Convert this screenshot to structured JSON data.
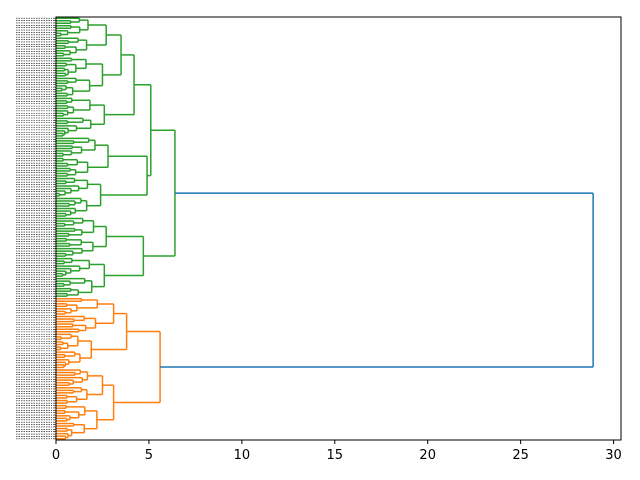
{
  "chart_data": {
    "type": "dendrogram",
    "orientation": "horizontal",
    "title": "",
    "xlabel": "",
    "ylabel": "",
    "xlim": [
      0,
      30.4
    ],
    "x_ticks": [
      0,
      5,
      10,
      15,
      20,
      25,
      30
    ],
    "x_tick_labels": [
      "0",
      "5",
      "10",
      "15",
      "20",
      "25",
      "30"
    ],
    "grid": false,
    "colors": {
      "orange_cluster": "#ff7f0e",
      "green_cluster": "#2ca02c",
      "root_link": "#1f77b4",
      "axis": "#000000"
    },
    "leaf_counts": {
      "orange_cluster": 60,
      "green_cluster": 118
    },
    "merges": [
      {
        "name": "root",
        "height": 28.9,
        "color": "root_link",
        "children": [
          "orange-top",
          "green-top"
        ]
      },
      {
        "name": "orange-top",
        "height": 5.6,
        "color": "orange_cluster",
        "children": [
          "orange-a",
          "orange-b"
        ]
      },
      {
        "name": "orange-a",
        "height": 3.8,
        "color": "orange_cluster",
        "children": [
          "orange-a1",
          "orange-a2"
        ]
      },
      {
        "name": "orange-a1",
        "height": 3.1,
        "color": "orange_cluster",
        "children": [
          "leaves",
          "leaves"
        ]
      },
      {
        "name": "orange-a2",
        "height": 1.9,
        "color": "orange_cluster",
        "children": [
          "leaves",
          "leaves"
        ]
      },
      {
        "name": "orange-b",
        "height": 3.1,
        "color": "orange_cluster",
        "children": [
          "orange-b1",
          "orange-b2"
        ]
      },
      {
        "name": "orange-b1",
        "height": 2.5,
        "color": "orange_cluster",
        "children": [
          "leaves",
          "leaves"
        ]
      },
      {
        "name": "orange-b2",
        "height": 2.2,
        "color": "orange_cluster",
        "children": [
          "leaves",
          "leaves"
        ]
      },
      {
        "name": "green-top",
        "height": 6.4,
        "color": "green_cluster",
        "children": [
          "green-a",
          "green-b"
        ]
      },
      {
        "name": "green-a",
        "height": 5.1,
        "color": "green_cluster",
        "children": [
          "green-a1",
          "green-a2"
        ]
      },
      {
        "name": "green-a1",
        "height": 4.2,
        "color": "green_cluster",
        "children": [
          "green-a1x",
          "green-a1y"
        ]
      },
      {
        "name": "green-a1x",
        "height": 3.5,
        "color": "green_cluster",
        "children": [
          "green-a1x1",
          "green-a1x2"
        ]
      },
      {
        "name": "green-a1x1",
        "height": 2.7,
        "color": "green_cluster",
        "children": [
          "leaves",
          "leaves"
        ]
      },
      {
        "name": "green-a1x2",
        "height": 2.5,
        "color": "green_cluster",
        "children": [
          "leaves",
          "leaves"
        ]
      },
      {
        "name": "green-a1y",
        "height": 2.6,
        "color": "green_cluster",
        "children": [
          "leaves",
          "leaves"
        ]
      },
      {
        "name": "green-a2",
        "height": 4.9,
        "color": "green_cluster",
        "children": [
          "green-a2x",
          "green-a2y"
        ]
      },
      {
        "name": "green-a2x",
        "height": 2.8,
        "color": "green_cluster",
        "children": [
          "leaves",
          "leaves"
        ]
      },
      {
        "name": "green-a2y",
        "height": 2.4,
        "color": "green_cluster",
        "children": [
          "leaves",
          "leaves"
        ]
      },
      {
        "name": "green-b",
        "height": 4.7,
        "color": "green_cluster",
        "children": [
          "green-b1",
          "green-b2"
        ]
      },
      {
        "name": "green-b1",
        "height": 2.7,
        "color": "green_cluster",
        "children": [
          "leaves",
          "leaves"
        ]
      },
      {
        "name": "green-b2",
        "height": 2.6,
        "color": "green_cluster",
        "children": [
          "leaves",
          "leaves"
        ]
      }
    ]
  }
}
